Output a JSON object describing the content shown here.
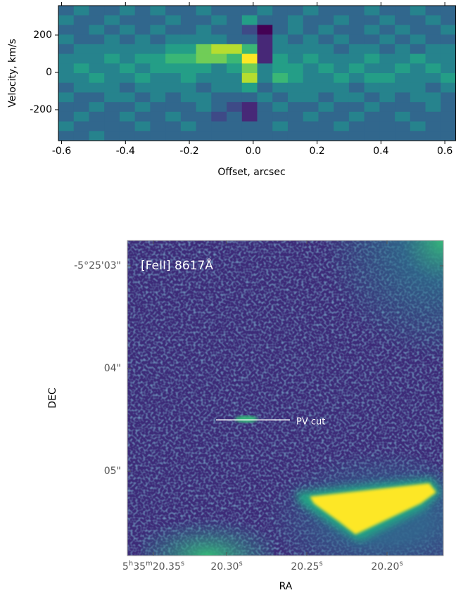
{
  "chart_data": [
    {
      "type": "heatmap",
      "xlabel": "Offset, arcsec",
      "ylabel": "Velocity, km/s",
      "colormap": "viridis",
      "zlim": [
        0,
        9
      ],
      "xlim": [
        -0.61,
        0.635
      ],
      "ylim": [
        -366,
        358
      ],
      "xticks": [
        -0.6,
        -0.4,
        -0.2,
        {
          "value": 0,
          "label": "0.0"
        },
        0.2,
        0.4,
        0.6
      ],
      "yticks": [
        -200,
        0,
        200
      ],
      "z": [
        [
          3,
          4,
          3,
          3,
          4,
          3,
          4,
          3,
          3,
          4,
          3,
          3,
          3,
          4,
          3,
          3,
          4,
          3,
          3,
          3,
          4,
          3,
          3,
          4,
          3,
          3
        ],
        [
          4,
          3,
          3,
          4,
          3,
          3,
          3,
          4,
          3,
          3,
          4,
          3,
          5,
          3,
          3,
          4,
          3,
          3,
          4,
          3,
          3,
          4,
          3,
          3,
          4,
          3
        ],
        [
          3,
          3,
          4,
          3,
          4,
          3,
          4,
          3,
          3,
          4,
          3,
          3,
          2,
          0,
          3,
          4,
          3,
          4,
          3,
          3,
          4,
          3,
          4,
          3,
          3,
          4
        ],
        [
          4,
          3,
          3,
          4,
          3,
          4,
          3,
          4,
          4,
          4,
          4,
          3,
          3,
          1,
          4,
          3,
          4,
          3,
          4,
          3,
          3,
          4,
          3,
          4,
          3,
          3
        ],
        [
          3,
          4,
          4,
          4,
          4,
          4,
          4,
          5,
          5,
          7,
          8,
          8,
          6,
          1,
          4,
          4,
          4,
          4,
          3,
          4,
          4,
          3,
          4,
          3,
          4,
          4
        ],
        [
          4,
          4,
          4,
          5,
          4,
          5,
          5,
          6,
          6,
          7,
          7,
          6,
          9,
          1,
          5,
          4,
          5,
          4,
          4,
          4,
          5,
          4,
          4,
          5,
          4,
          4
        ],
        [
          4,
          5,
          4,
          4,
          5,
          4,
          5,
          5,
          5,
          5,
          4,
          5,
          7,
          4,
          5,
          5,
          4,
          5,
          4,
          5,
          4,
          4,
          5,
          4,
          5,
          4
        ],
        [
          4,
          4,
          5,
          4,
          4,
          5,
          4,
          4,
          5,
          4,
          4,
          4,
          8,
          4,
          6,
          5,
          4,
          4,
          5,
          4,
          5,
          5,
          4,
          4,
          4,
          5
        ],
        [
          3,
          4,
          4,
          4,
          3,
          4,
          4,
          4,
          4,
          3,
          4,
          4,
          5,
          3,
          4,
          4,
          4,
          4,
          4,
          3,
          4,
          4,
          4,
          4,
          3,
          4
        ],
        [
          4,
          3,
          3,
          4,
          4,
          3,
          4,
          3,
          4,
          4,
          3,
          3,
          3,
          4,
          3,
          4,
          4,
          3,
          4,
          4,
          3,
          4,
          3,
          4,
          4,
          3
        ],
        [
          3,
          3,
          4,
          3,
          3,
          4,
          3,
          3,
          3,
          4,
          3,
          2,
          1,
          3,
          4,
          3,
          3,
          4,
          3,
          3,
          4,
          3,
          3,
          3,
          4,
          3
        ],
        [
          3,
          4,
          3,
          3,
          4,
          3,
          3,
          4,
          3,
          3,
          2,
          3,
          1,
          3,
          3,
          3,
          4,
          3,
          3,
          4,
          3,
          3,
          4,
          3,
          3,
          3
        ],
        [
          4,
          3,
          3,
          3,
          3,
          4,
          3,
          3,
          4,
          3,
          3,
          3,
          3,
          3,
          4,
          3,
          3,
          3,
          4,
          3,
          3,
          3,
          3,
          4,
          3,
          3
        ],
        [
          3,
          3,
          4,
          3,
          3,
          3,
          3,
          3,
          3,
          3,
          3,
          3,
          3,
          3,
          3,
          3,
          3,
          3,
          3,
          3,
          3,
          3,
          3,
          3,
          3,
          3
        ]
      ]
    },
    {
      "type": "image",
      "title": "[FeII] 8617Å",
      "annotation": "PV cut",
      "xlabel": "RA",
      "ylabel": "DEC",
      "yticks": [
        "-5°25'03\"",
        "04\"",
        "05\""
      ],
      "xticks": [
        [
          "5",
          "h",
          "35",
          "m",
          "20.35",
          "s"
        ],
        [
          "20.30",
          "s"
        ],
        [
          "20.25",
          "s"
        ],
        [
          "20.20",
          "s"
        ]
      ]
    }
  ]
}
